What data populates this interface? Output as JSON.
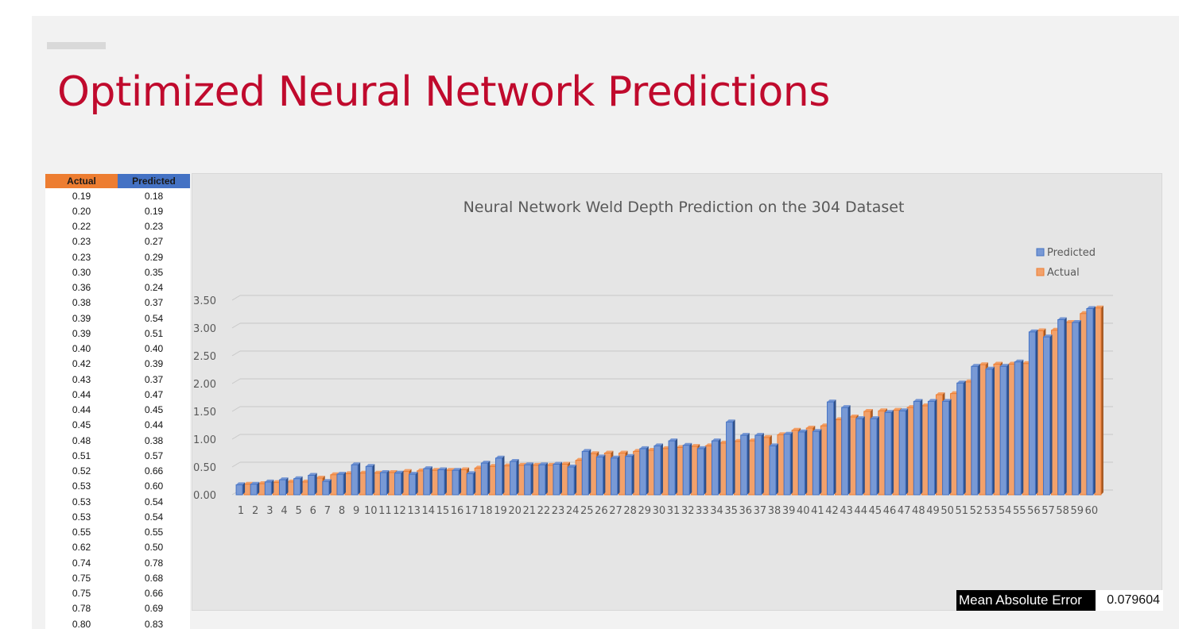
{
  "slide": {
    "title": "Optimized Neural Network Predictions"
  },
  "table": {
    "headers": [
      "Actual",
      "Predicted"
    ],
    "header_colors": [
      "#ed7d31",
      "#4472c4"
    ],
    "rows": [
      [
        "0.19",
        "0.18"
      ],
      [
        "0.20",
        "0.19"
      ],
      [
        "0.22",
        "0.23"
      ],
      [
        "0.23",
        "0.27"
      ],
      [
        "0.23",
        "0.29"
      ],
      [
        "0.30",
        "0.35"
      ],
      [
        "0.36",
        "0.24"
      ],
      [
        "0.38",
        "0.37"
      ],
      [
        "0.39",
        "0.54"
      ],
      [
        "0.39",
        "0.51"
      ],
      [
        "0.40",
        "0.40"
      ],
      [
        "0.42",
        "0.39"
      ],
      [
        "0.43",
        "0.37"
      ],
      [
        "0.44",
        "0.47"
      ],
      [
        "0.44",
        "0.45"
      ],
      [
        "0.45",
        "0.44"
      ],
      [
        "0.48",
        "0.38"
      ],
      [
        "0.51",
        "0.57"
      ],
      [
        "0.52",
        "0.66"
      ],
      [
        "0.53",
        "0.60"
      ],
      [
        "0.53",
        "0.54"
      ],
      [
        "0.53",
        "0.54"
      ],
      [
        "0.55",
        "0.55"
      ],
      [
        "0.62",
        "0.50"
      ],
      [
        "0.74",
        "0.78"
      ],
      [
        "0.75",
        "0.68"
      ],
      [
        "0.75",
        "0.66"
      ],
      [
        "0.78",
        "0.69"
      ],
      [
        "0.80",
        "0.83"
      ]
    ]
  },
  "metrics": {
    "mae_label": "Mean Absolute Error",
    "mae_value": "0.079604"
  },
  "chart_data": {
    "type": "bar",
    "title": "Neural Network Weld Depth Prediction on the 304 Dataset",
    "xlabel": "",
    "ylabel": "",
    "ylim": [
      0,
      3.5
    ],
    "yticks": [
      "0.00",
      "0.50",
      "1.00",
      "1.50",
      "2.00",
      "2.50",
      "3.00",
      "3.50"
    ],
    "grid": true,
    "legend_position": "right",
    "categories": [
      "1",
      "2",
      "3",
      "4",
      "5",
      "6",
      "7",
      "8",
      "9",
      "10",
      "11",
      "12",
      "13",
      "14",
      "15",
      "16",
      "17",
      "18",
      "19",
      "20",
      "21",
      "22",
      "23",
      "24",
      "25",
      "26",
      "27",
      "28",
      "29",
      "30",
      "31",
      "32",
      "33",
      "34",
      "35",
      "36",
      "37",
      "38",
      "39",
      "40",
      "41",
      "42",
      "43",
      "44",
      "45",
      "46",
      "47",
      "48",
      "49",
      "50",
      "51",
      "52",
      "53",
      "54",
      "55",
      "56",
      "57",
      "58",
      "59",
      "60"
    ],
    "series": [
      {
        "name": "Predicted",
        "color": "#4472c4",
        "values": [
          0.18,
          0.19,
          0.23,
          0.27,
          0.29,
          0.35,
          0.24,
          0.37,
          0.54,
          0.51,
          0.4,
          0.39,
          0.37,
          0.47,
          0.45,
          0.44,
          0.38,
          0.57,
          0.66,
          0.6,
          0.54,
          0.54,
          0.55,
          0.5,
          0.78,
          0.68,
          0.66,
          0.69,
          0.83,
          0.88,
          0.97,
          0.89,
          0.83,
          0.97,
          1.31,
          1.07,
          1.07,
          0.88,
          1.09,
          1.13,
          1.14,
          1.67,
          1.57,
          1.37,
          1.37,
          1.48,
          1.51,
          1.68,
          1.68,
          1.68,
          2.01,
          2.31,
          2.26,
          2.31,
          2.39,
          2.93,
          2.84,
          3.15,
          3.1,
          3.35
        ]
      },
      {
        "name": "Actual",
        "color": "#ed7d31",
        "values": [
          0.19,
          0.2,
          0.22,
          0.23,
          0.23,
          0.3,
          0.36,
          0.38,
          0.39,
          0.39,
          0.4,
          0.42,
          0.43,
          0.44,
          0.44,
          0.45,
          0.48,
          0.51,
          0.52,
          0.53,
          0.53,
          0.53,
          0.55,
          0.62,
          0.74,
          0.75,
          0.75,
          0.78,
          0.8,
          0.83,
          0.85,
          0.87,
          0.88,
          0.93,
          0.96,
          0.97,
          1.03,
          1.08,
          1.16,
          1.2,
          1.24,
          1.35,
          1.4,
          1.5,
          1.51,
          1.52,
          1.57,
          1.6,
          1.8,
          1.82,
          2.03,
          2.34,
          2.35,
          2.35,
          2.36,
          2.95,
          2.96,
          3.1,
          3.26,
          3.36
        ]
      }
    ]
  }
}
